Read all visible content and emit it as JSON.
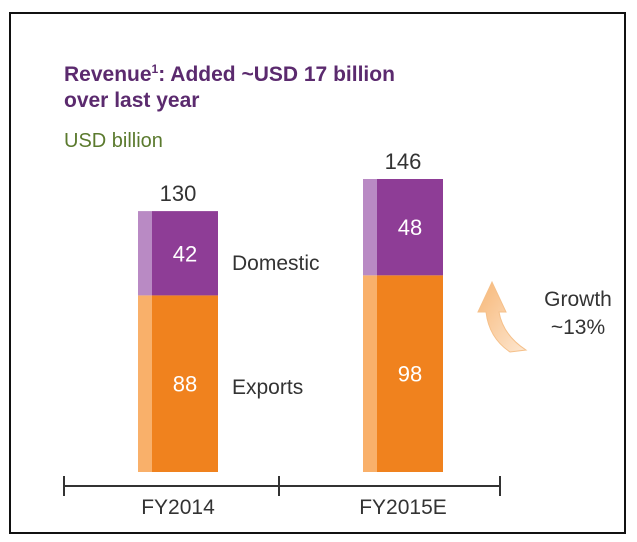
{
  "colors": {
    "title": "#5b2a6e",
    "unit": "#5b7a2e",
    "domestic_front": "#8e3d96",
    "domestic_side": "#b98ac4",
    "exports_front": "#f0821e",
    "exports_side": "#f9b06a",
    "segment_value": "#ffffff",
    "dark_text": "#333333"
  },
  "header": {
    "title_line1": "Revenue",
    "title_sup": "1",
    "title_line1_rest": ": Added ~USD 17 billion",
    "title_line2": "over last year",
    "unit": "USD billion"
  },
  "annotations": {
    "domestic_label": "Domestic",
    "exports_label": "Exports",
    "growth_line1": "Growth",
    "growth_line2": "~13%"
  },
  "chart_data": {
    "type": "bar",
    "stacked": true,
    "title": "Revenue¹: Added ~USD 17 billion over last year",
    "ylabel": "USD billion",
    "categories": [
      "FY2014",
      "FY2015E"
    ],
    "series": [
      {
        "name": "Exports",
        "values": [
          88,
          98
        ]
      },
      {
        "name": "Domestic",
        "values": [
          42,
          48
        ]
      }
    ],
    "totals": [
      "130",
      "146"
    ],
    "segment_labels": [
      [
        "88",
        "42"
      ],
      [
        "98",
        "48"
      ]
    ],
    "ylim": [
      0,
      146
    ],
    "grid": false,
    "legend": "inline labels"
  }
}
